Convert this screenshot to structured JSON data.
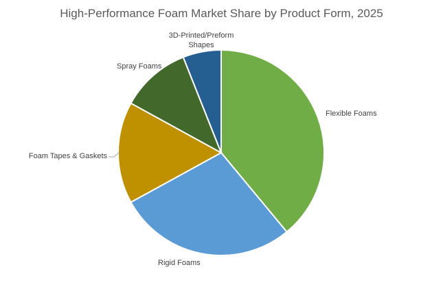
{
  "chart_data": {
    "type": "pie",
    "title": "High-Performance Foam Market Share by Product Form, 2025",
    "categories": [
      "Flexible Foams",
      "Rigid Foams",
      "Foam Tapes & Gaskets",
      "Spray Foams",
      "3D-Printed/Preform Shapes"
    ],
    "values": [
      39,
      28,
      16,
      11,
      6
    ],
    "colors": [
      "#70ad47",
      "#5b9bd5",
      "#bf9000",
      "#43682b",
      "#255e91"
    ]
  }
}
